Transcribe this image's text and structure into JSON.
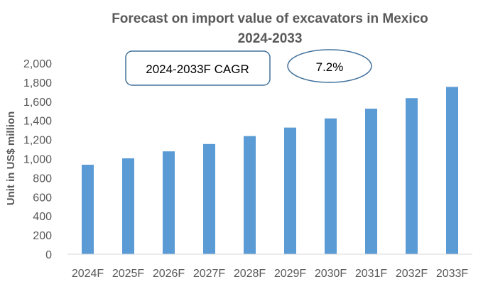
{
  "chart_data": {
    "type": "bar",
    "title": "Forecast on import value of excavators in Mexico",
    "subtitle": "2024-2033",
    "xlabel": "",
    "ylabel": "Unit in US$ million",
    "ylim": [
      0,
      2000
    ],
    "yticks": [
      "0",
      "200",
      "400",
      "600",
      "800",
      "1,000",
      "1,200",
      "1,400",
      "1,600",
      "1,800",
      "2,000"
    ],
    "categories": [
      "2024F",
      "2025F",
      "2026F",
      "2027F",
      "2028F",
      "2029F",
      "2030F",
      "2031F",
      "2032F",
      "2033F"
    ],
    "values": [
      937,
      1004,
      1077,
      1154,
      1237,
      1326,
      1422,
      1524,
      1634,
      1752
    ],
    "grid": false,
    "bar_color": "#5B9BD5",
    "annotations": {
      "cagr_label": "2024-2033F CAGR",
      "cagr_value": "7.2%"
    }
  }
}
